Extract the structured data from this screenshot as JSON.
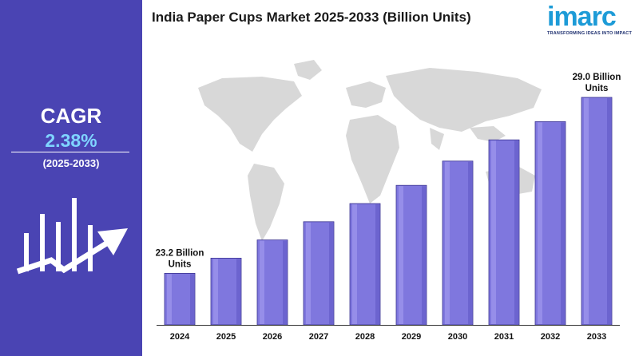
{
  "header": {
    "title": "India Paper Cups Market 2025-2033 (Billion Units)",
    "logo_text": "imarc",
    "logo_tagline": "TRANSFORMING IDEAS INTO IMPACT"
  },
  "sidebar": {
    "cagr_label": "CAGR",
    "cagr_value": "2.38%",
    "cagr_period": "(2025-2033)"
  },
  "colors": {
    "panel": "#4a44b3",
    "bar": "#7f77de",
    "bar_highlight": "#a59ef0",
    "bar_shade": "#5a52c0",
    "cagr_value": "#7fd4ff",
    "logo": "#1d9bd7"
  },
  "chart_data": {
    "type": "bar",
    "title": "India Paper Cups Market 2025-2033 (Billion Units)",
    "categories": [
      "2024",
      "2025",
      "2026",
      "2027",
      "2028",
      "2029",
      "2030",
      "2031",
      "2032",
      "2033"
    ],
    "values": [
      23.2,
      23.7,
      24.3,
      24.9,
      25.5,
      26.1,
      26.9,
      27.6,
      28.2,
      29.0
    ],
    "ylim": [
      21.5,
      29.0
    ],
    "grid": false,
    "annotations": [
      {
        "index": 0,
        "lines": [
          "23.2 Billion",
          "Units"
        ]
      },
      {
        "index": 9,
        "lines": [
          "29.0 Billion",
          "Units"
        ]
      }
    ]
  }
}
